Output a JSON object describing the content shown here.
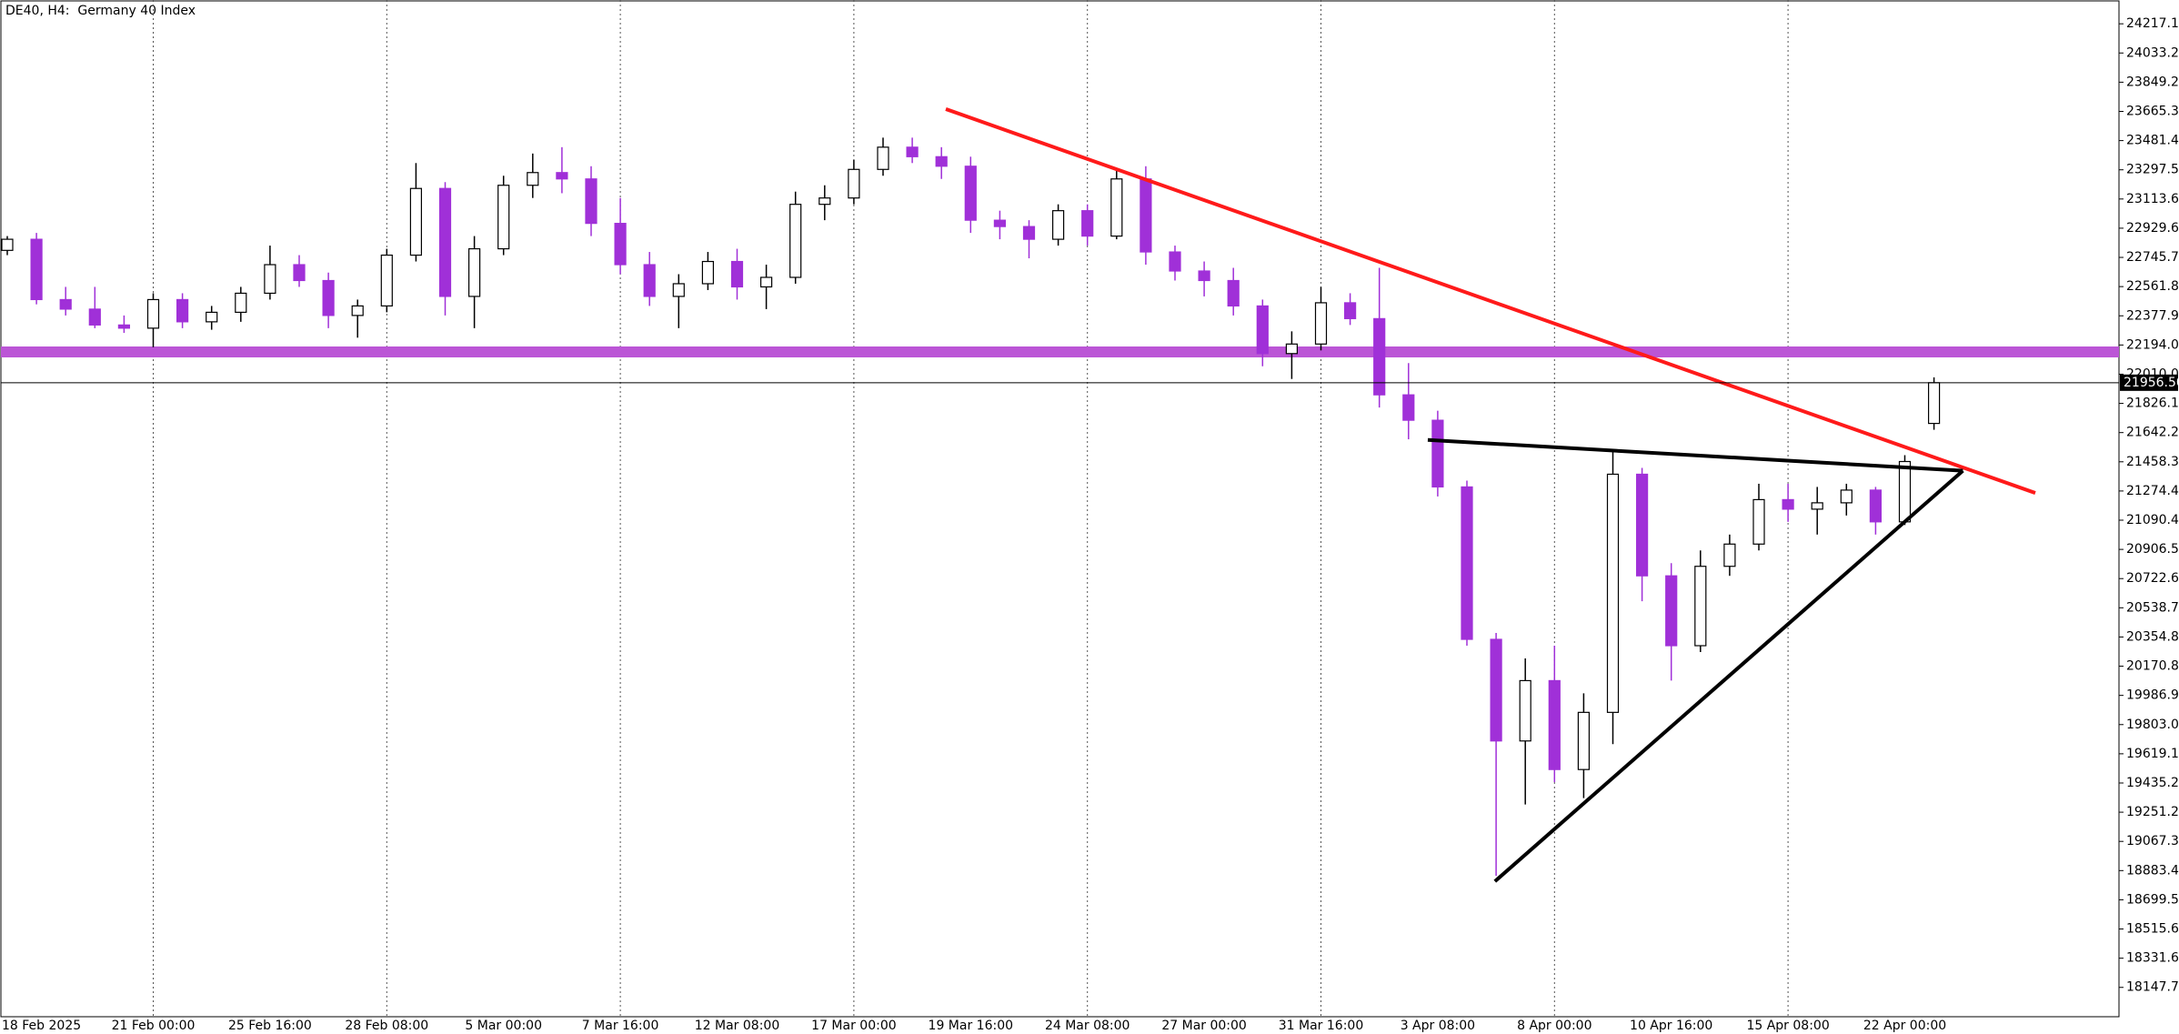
{
  "chart_data": {
    "type": "candlestick",
    "title": "DE40, H4:  Germany 40 Index",
    "categories": [
      "18 Feb 2025",
      null,
      null,
      null,
      null,
      "21 Feb 00:00",
      null,
      null,
      null,
      "25 Feb 16:00",
      null,
      null,
      null,
      "28 Feb 08:00",
      null,
      null,
      null,
      "5 Mar 00:00",
      null,
      null,
      null,
      "7 Mar 16:00",
      null,
      null,
      null,
      "12 Mar 08:00",
      null,
      null,
      null,
      "17 Mar 00:00",
      null,
      null,
      null,
      "19 Mar 16:00",
      null,
      null,
      null,
      "24 Mar 08:00",
      null,
      null,
      null,
      "27 Mar 00:00",
      null,
      null,
      null,
      "31 Mar 16:00",
      null,
      null,
      null,
      "3 Apr 08:00",
      null,
      null,
      null,
      "8 Apr 00:00",
      null,
      null,
      null,
      "10 Apr 16:00",
      null,
      null,
      null,
      "15 Apr 08:00",
      null,
      null,
      null,
      "22 Apr 00:00",
      null
    ],
    "open": [
      22790,
      22860,
      22480,
      22420,
      22320,
      22300,
      22480,
      22340,
      22400,
      22520,
      22700,
      22600,
      22380,
      22440,
      22760,
      23180,
      22500,
      22800,
      23200,
      23280,
      23240,
      22960,
      22700,
      22500,
      22580,
      22720,
      22560,
      22620,
      23080,
      23120,
      23300,
      23440,
      23380,
      23320,
      22980,
      22940,
      22860,
      23040,
      22880,
      23240,
      22780,
      22660,
      22600,
      22440,
      22140,
      22200,
      22460,
      22360,
      21880,
      21720,
      21300,
      20340,
      19700,
      20080,
      19520,
      19880,
      21380,
      20740,
      20300,
      20800,
      20940,
      21220,
      21160,
      21200,
      21280,
      21080,
      21700
    ],
    "high": [
      22880,
      22900,
      22560,
      22560,
      22380,
      22520,
      22520,
      22440,
      22560,
      22820,
      22760,
      22650,
      22480,
      22800,
      23340,
      23220,
      22880,
      23260,
      23400,
      23440,
      23320,
      23120,
      22780,
      22640,
      22780,
      22800,
      22700,
      23160,
      23200,
      23360,
      23500,
      23500,
      23440,
      23380,
      23040,
      22980,
      23080,
      23080,
      23300,
      23320,
      22820,
      22720,
      22680,
      22480,
      22280,
      22560,
      22520,
      22680,
      22080,
      21780,
      21340,
      20380,
      20220,
      20300,
      20000,
      21540,
      21420,
      20820,
      20900,
      21000,
      21320,
      21320,
      21300,
      21320,
      21300,
      21500,
      21990
    ],
    "low": [
      22760,
      22450,
      22380,
      22300,
      22270,
      22180,
      22300,
      22290,
      22340,
      22480,
      22560,
      22300,
      22240,
      22400,
      22720,
      22380,
      22300,
      22760,
      23120,
      23150,
      22880,
      22640,
      22440,
      22300,
      22540,
      22480,
      22420,
      22580,
      22980,
      23080,
      23260,
      23340,
      23240,
      22900,
      22860,
      22740,
      22820,
      22820,
      22860,
      22700,
      22600,
      22500,
      22380,
      22060,
      21980,
      22160,
      22320,
      21800,
      21600,
      21240,
      20300,
      18850,
      19300,
      19440,
      19340,
      19680,
      20580,
      20080,
      20260,
      20740,
      20900,
      21080,
      21000,
      21120,
      21000,
      21060,
      21660
    ],
    "close": [
      22860,
      22480,
      22420,
      22320,
      22300,
      22480,
      22340,
      22400,
      22520,
      22700,
      22600,
      22380,
      22440,
      22760,
      23180,
      22500,
      22800,
      23200,
      23280,
      23240,
      22960,
      22700,
      22500,
      22580,
      22720,
      22560,
      22620,
      23080,
      23120,
      23300,
      23440,
      23380,
      23320,
      22980,
      22940,
      22860,
      23040,
      22880,
      23240,
      22780,
      22660,
      22600,
      22440,
      22140,
      22200,
      22460,
      22360,
      21880,
      21720,
      21300,
      20340,
      19700,
      20080,
      19520,
      19880,
      21380,
      20740,
      20300,
      20800,
      20940,
      21220,
      21160,
      21200,
      21280,
      21080,
      21460,
      21956.5
    ],
    "up_color": "#ffffff",
    "down_color": "#a030d8",
    "ylim": [
      17963,
      24367
    ],
    "yticks": [
      24217.12,
      {
        "value": 24033.2,
        "label": "24033.20"
      },
      23849.28,
      23665.36,
      23481.44,
      23297.52,
      {
        "value": 23113.6,
        "label": "23113.60"
      },
      22929.68,
      22745.76,
      22561.84,
      22377.92,
      {
        "value": 22194,
        "label": "22194.00"
      },
      22010.08,
      21826.16,
      21642.24,
      21458.32,
      {
        "value": 21274.4,
        "label": "21274.40"
      },
      21090.48,
      20906.56,
      20722.64,
      20538.72,
      {
        "value": 20354.8,
        "label": "20354.80"
      },
      20170.88,
      19986.96,
      19803.04,
      19619.12,
      {
        "value": 19435.2,
        "label": "19435.20"
      },
      19251.28,
      19067.36,
      18883.44,
      18699.52,
      {
        "value": 18515.6,
        "label": "18515.60"
      },
      18331.68,
      18147.76
    ],
    "grid": true,
    "price_line": {
      "value": 21956.5,
      "label": "21956.50"
    },
    "levels": [
      {
        "value": 22150,
        "color": "#bb55d6"
      }
    ],
    "trendlines": [
      {
        "color": "#ff1a1a",
        "points": [
          [
            32.15,
            23680
          ],
          [
            69.47,
            21262
          ]
        ]
      },
      {
        "color": "#000000",
        "points": [
          [
            48.66,
            21596
          ],
          [
            66.99,
            21402
          ]
        ]
      },
      {
        "color": "#000000",
        "points": [
          [
            50.96,
            18816
          ],
          [
            66.99,
            21402
          ]
        ]
      }
    ]
  }
}
